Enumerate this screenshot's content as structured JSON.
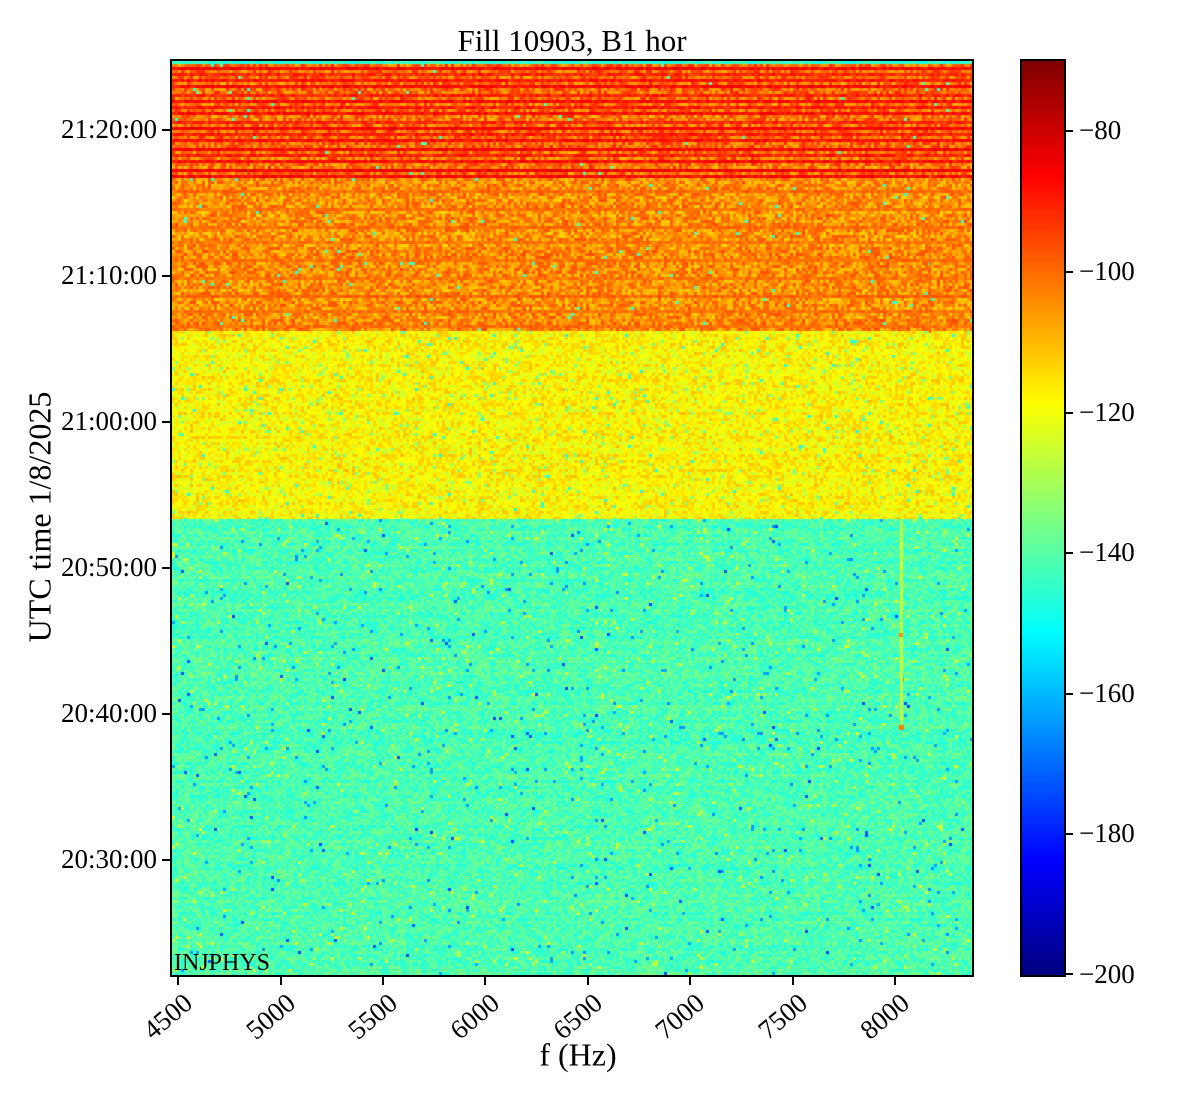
{
  "title": "Fill 10903, B1 hor",
  "annotation": "INJPHYS",
  "chart_data": {
    "type": "heatmap",
    "title": "Fill 10903, B1 hor",
    "xlabel": "f (Hz)",
    "ylabel": "UTC time 1/8/2025",
    "annotation": "INJPHYS",
    "colormap": "jet",
    "x_axis": {
      "lim": [
        4470,
        8376
      ],
      "ticks": [
        4500,
        5000,
        5500,
        6000,
        6500,
        7000,
        7500,
        8000
      ],
      "unit": "Hz"
    },
    "y_axis": {
      "time_top": "21:24:43",
      "time_bottom": "20:22:07",
      "ticks": [
        "21:20:00",
        "21:10:00",
        "21:00:00",
        "20:50:00",
        "20:40:00",
        "20:30:00"
      ],
      "date": "1/8/2025"
    },
    "colorbar": {
      "clim": [
        -200,
        -70
      ],
      "ticks": [
        {
          "value": -80,
          "label": "−80"
        },
        {
          "value": -100,
          "label": "−100"
        },
        {
          "value": -120,
          "label": "−120"
        },
        {
          "value": -140,
          "label": "−140"
        },
        {
          "value": -160,
          "label": "−160"
        },
        {
          "value": -180,
          "label": "−180"
        },
        {
          "value": -200,
          "label": "−200"
        }
      ]
    },
    "bands": [
      {
        "name": "top-strip",
        "t_hi": "21:24:43",
        "t_lo": "21:24:30",
        "base": -146,
        "noise": 4,
        "outliers": []
      },
      {
        "name": "high-activity-streaked",
        "t_hi": "21:24:30",
        "t_lo": "21:16:40",
        "base": -101,
        "noise": 9,
        "outliers": [
          {
            "p": 0.01,
            "dv": -40
          },
          {
            "p": 0.05,
            "dv": 9
          }
        ],
        "streaks": [
          {
            "o": 2,
            "v": -87
          },
          {
            "o": 8,
            "v": -91
          },
          {
            "o": 14,
            "v": -89
          },
          {
            "o": 21,
            "v": -88
          },
          {
            "o": 28,
            "v": -91
          },
          {
            "o": 34,
            "v": -87
          },
          {
            "o": 41,
            "v": -90
          },
          {
            "o": 48,
            "v": -88
          },
          {
            "o": 55,
            "v": -91
          },
          {
            "o": 61,
            "v": -86
          },
          {
            "o": 68,
            "v": -90
          },
          {
            "o": 75,
            "v": -89
          },
          {
            "o": 83,
            "v": -87
          },
          {
            "o": 90,
            "v": -90
          },
          {
            "o": 96,
            "v": -88
          },
          {
            "o": 104,
            "v": -86
          },
          {
            "o": 110,
            "v": -88
          }
        ]
      },
      {
        "name": "mid-activity-orange",
        "t_hi": "21:16:40",
        "t_lo": "21:06:10",
        "base": -105,
        "noise": 8,
        "outliers": [
          {
            "p": 0.008,
            "dv": -38
          },
          {
            "p": 0.04,
            "dv": 8
          }
        ],
        "streaks": [
          {
            "o": 12,
            "v": -100
          },
          {
            "o": 30,
            "v": -101
          },
          {
            "o": 47,
            "v": -100
          },
          {
            "o": 63,
            "v": -101
          },
          {
            "o": 80,
            "v": -100
          },
          {
            "o": 98,
            "v": -101
          },
          {
            "o": 116,
            "v": -100
          },
          {
            "o": 132,
            "v": -101
          },
          {
            "o": 146,
            "v": -100
          }
        ]
      },
      {
        "name": "yellow-band",
        "t_hi": "21:06:10",
        "t_lo": "20:53:20",
        "base": -118.5,
        "noise": 6.5,
        "outliers": [
          {
            "p": 0.008,
            "dv": -27
          },
          {
            "p": 0.03,
            "dv": -16
          },
          {
            "p": 0.04,
            "dv": 7
          }
        ],
        "streaks": []
      },
      {
        "name": "quiet-green-band",
        "t_hi": "20:53:20",
        "t_lo": "20:22:07",
        "base": -141.5,
        "noise": 5.5,
        "outliers": [
          {
            "p": 0.003,
            "dv": -32
          },
          {
            "p": 0.012,
            "dv": -22
          },
          {
            "p": 0.02,
            "dv": 16
          }
        ],
        "streaks": []
      }
    ],
    "features": [
      {
        "type": "vline",
        "name": "faint-dark-line",
        "f": 8170,
        "t_hi": "21:17:00",
        "t_lo": "21:06:10",
        "value": -100,
        "width": 2
      },
      {
        "type": "vline",
        "name": "yellow-line",
        "f": 8030,
        "t_hi": "20:53:20",
        "t_lo": "20:39:00",
        "value": -126,
        "width": 3
      },
      {
        "type": "dot",
        "name": "hot-spot-1",
        "f": 8030,
        "t": "20:45:25",
        "value": -104,
        "size": 4
      },
      {
        "type": "dot",
        "name": "hot-spot-2",
        "f": 8030,
        "t": "20:39:05",
        "value": -102,
        "size": 5
      }
    ]
  }
}
